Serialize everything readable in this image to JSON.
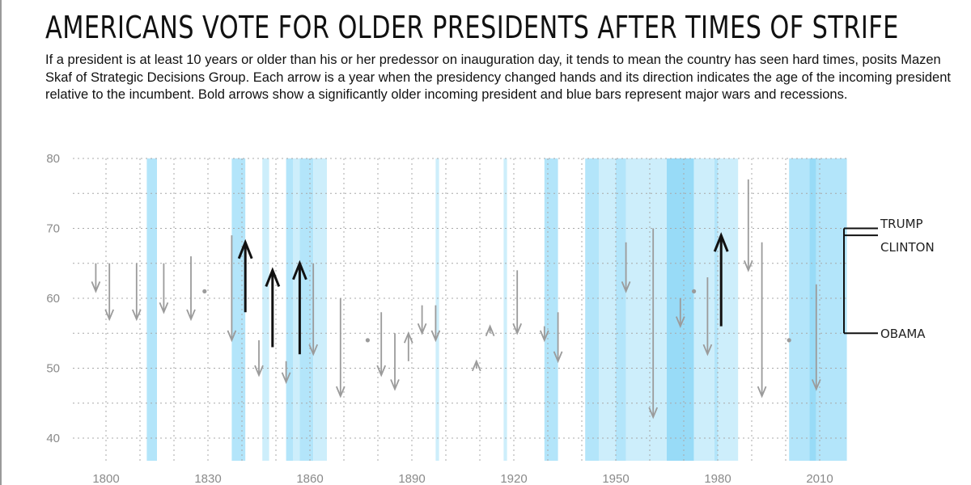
{
  "chart_data": {
    "type": "arrow-range",
    "title": "AMERICANS VOTE FOR OLDER PRESIDENTS AFTER TIMES OF STRIFE",
    "subtitle": "If a president is at least 10 years or older than his or her predessor on inauguration day, it tends to mean the country has seen hard times, posits Mazen Skaf of Strategic Decisions Group. Each arrow is a year when the presidency changed hands and its direction indicates the age of the incoming president relative to the incumbent. Bold arrows show a significantly older incoming president and blue bars represent major wars and recessions.",
    "xlim": [
      1790,
      2022
    ],
    "ylim": [
      37,
      80
    ],
    "x_ticks": [
      1800,
      1830,
      1860,
      1890,
      1920,
      1950,
      1980,
      2010
    ],
    "y_ticks": [
      40,
      50,
      60,
      70,
      80
    ],
    "grid": true,
    "colors": {
      "arrow": "#9b9b9b",
      "bold_arrow": "#111111",
      "band_light": "#cdeefb",
      "band_mid": "#b3e5fa",
      "band_dark": "#98dbf7"
    },
    "strife_periods": [
      {
        "start": 1812,
        "end": 1815,
        "shade": "mid"
      },
      {
        "start": 1837,
        "end": 1841,
        "shade": "mid"
      },
      {
        "start": 1846,
        "end": 1848,
        "shade": "light"
      },
      {
        "start": 1853,
        "end": 1855,
        "shade": "mid"
      },
      {
        "start": 1855,
        "end": 1857,
        "shade": "light"
      },
      {
        "start": 1857,
        "end": 1861,
        "shade": "mid"
      },
      {
        "start": 1861,
        "end": 1865,
        "shade": "light"
      },
      {
        "start": 1897,
        "end": 1898,
        "shade": "light"
      },
      {
        "start": 1917,
        "end": 1918,
        "shade": "light"
      },
      {
        "start": 1929,
        "end": 1933,
        "shade": "mid"
      },
      {
        "start": 1941,
        "end": 1945,
        "shade": "mid"
      },
      {
        "start": 1945,
        "end": 1950,
        "shade": "light"
      },
      {
        "start": 1950,
        "end": 1953,
        "shade": "mid"
      },
      {
        "start": 1953,
        "end": 1965,
        "shade": "light"
      },
      {
        "start": 1965,
        "end": 1973,
        "shade": "dark"
      },
      {
        "start": 1973,
        "end": 1979,
        "shade": "light"
      },
      {
        "start": 1979,
        "end": 1980,
        "shade": "mid"
      },
      {
        "start": 1980,
        "end": 1986,
        "shade": "light"
      },
      {
        "start": 2001,
        "end": 2007,
        "shade": "mid"
      },
      {
        "start": 2007,
        "end": 2009,
        "shade": "dark"
      },
      {
        "start": 2009,
        "end": 2018,
        "shade": "mid"
      }
    ],
    "transitions": [
      {
        "year": 1797,
        "from": 65,
        "to": 61,
        "bold": false
      },
      {
        "year": 1801,
        "from": 65,
        "to": 57,
        "bold": false
      },
      {
        "year": 1809,
        "from": 65,
        "to": 57,
        "bold": false
      },
      {
        "year": 1817,
        "from": 65,
        "to": 58,
        "bold": false
      },
      {
        "year": 1825,
        "from": 66,
        "to": 57,
        "bold": false
      },
      {
        "year": 1829,
        "from": 61,
        "to": 61,
        "bold": false
      },
      {
        "year": 1837,
        "from": 69,
        "to": 54,
        "bold": false
      },
      {
        "year": 1841,
        "from": 58,
        "to": 68,
        "bold": true
      },
      {
        "year": 1845,
        "from": 54,
        "to": 49,
        "bold": false
      },
      {
        "year": 1849,
        "from": 53,
        "to": 64,
        "bold": true
      },
      {
        "year": 1853,
        "from": 51,
        "to": 48,
        "bold": false
      },
      {
        "year": 1857,
        "from": 52,
        "to": 65,
        "bold": true
      },
      {
        "year": 1861,
        "from": 65,
        "to": 52,
        "bold": false
      },
      {
        "year": 1869,
        "from": 60,
        "to": 46,
        "bold": false
      },
      {
        "year": 1877,
        "from": 54,
        "to": 54,
        "bold": false
      },
      {
        "year": 1881,
        "from": 58,
        "to": 49,
        "bold": false
      },
      {
        "year": 1885,
        "from": 55,
        "to": 47,
        "bold": false
      },
      {
        "year": 1889,
        "from": 51,
        "to": 55,
        "bold": false
      },
      {
        "year": 1893,
        "from": 59,
        "to": 55,
        "bold": false
      },
      {
        "year": 1897,
        "from": 59,
        "to": 54,
        "bold": false
      },
      {
        "year": 1909,
        "from": 50,
        "to": 51,
        "bold": false
      },
      {
        "year": 1913,
        "from": 55,
        "to": 56,
        "bold": false
      },
      {
        "year": 1921,
        "from": 64,
        "to": 55,
        "bold": false
      },
      {
        "year": 1929,
        "from": 56,
        "to": 54,
        "bold": false
      },
      {
        "year": 1933,
        "from": 58,
        "to": 51,
        "bold": false
      },
      {
        "year": 1953,
        "from": 68,
        "to": 61,
        "bold": false
      },
      {
        "year": 1961,
        "from": 70,
        "to": 43,
        "bold": false
      },
      {
        "year": 1969,
        "from": 60,
        "to": 56,
        "bold": false
      },
      {
        "year": 1973,
        "from": 61,
        "to": 61,
        "bold": false
      },
      {
        "year": 1977,
        "from": 63,
        "to": 52,
        "bold": false
      },
      {
        "year": 1981,
        "from": 56,
        "to": 69,
        "bold": true
      },
      {
        "year": 1989,
        "from": 77,
        "to": 64,
        "bold": false
      },
      {
        "year": 1993,
        "from": 68,
        "to": 46,
        "bold": false
      },
      {
        "year": 2001,
        "from": 54,
        "to": 54,
        "bold": false
      },
      {
        "year": 2009,
        "from": 62,
        "to": 47,
        "bold": false
      }
    ],
    "annotations": [
      {
        "label": "TRUMP",
        "age": 70
      },
      {
        "label": "CLINTON",
        "age": 69
      },
      {
        "label": "OBAMA",
        "age": 55
      }
    ]
  }
}
